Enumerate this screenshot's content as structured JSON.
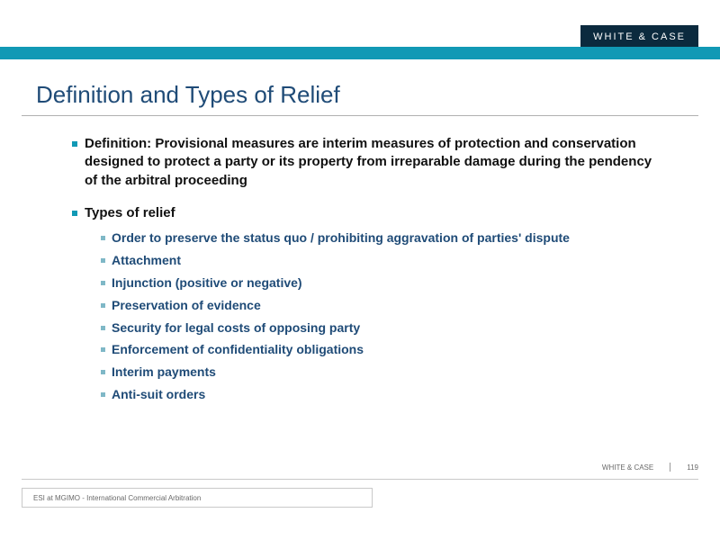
{
  "brand": {
    "logo_text": "WHITE & CASE",
    "logo_bg": "#0b2a3e",
    "logo_fg": "#ffffff"
  },
  "colors": {
    "top_bar": "#1199b5",
    "title": "#1f4b77",
    "body_text": "#111111",
    "sub_text": "#1f4b77",
    "bullet_primary": "#1199b5",
    "bullet_secondary": "#7fb8c7",
    "rule": "#b0b0b0",
    "footer_text": "#6a6a6a",
    "footer_border": "#c9c9c9",
    "background": "#ffffff"
  },
  "typography": {
    "title_fontsize": 26,
    "body_fontsize": 15,
    "sub_fontsize": 14,
    "footer_fontsize": 8,
    "font_family": "Arial"
  },
  "slide": {
    "title": "Definition and Types of Relief",
    "definition_label": "Definition",
    "definition_text": ":  Provisional measures are interim measures of protection and conservation designed to protect a party or its property from irreparable damage during the pendency of the arbitral proceeding",
    "types_label": "Types of relief",
    "types": [
      "Order to preserve the status quo / prohibiting aggravation of parties' dispute",
      "Attachment",
      "Injunction (positive or negative)",
      "Preservation of evidence",
      "Security for legal costs of opposing party",
      "Enforcement of confidentiality obligations",
      "Interim payments",
      "Anti-suit orders"
    ]
  },
  "footer": {
    "left": "ESI at MGIMO - International Commercial Arbitration",
    "right_label": "WHITE & CASE",
    "page": "119"
  }
}
